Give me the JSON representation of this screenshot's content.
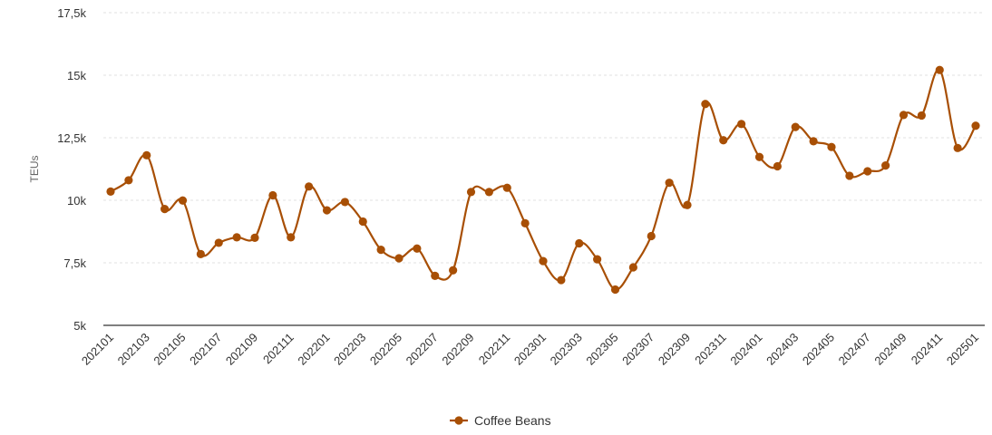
{
  "chart_data": {
    "type": "line",
    "ylabel": "TEUs",
    "ylim": [
      5000,
      17500
    ],
    "yticks": [
      5000,
      7500,
      10000,
      12500,
      15000,
      17500
    ],
    "ytick_labels": [
      "5k",
      "7,5k",
      "10k",
      "12,5k",
      "15k",
      "17,5k"
    ],
    "grid": "horizontal dashed",
    "legend_position": "bottom-center",
    "x": [
      "202101",
      "202102",
      "202103",
      "202104",
      "202105",
      "202106",
      "202107",
      "202108",
      "202109",
      "202110",
      "202111",
      "202112",
      "202201",
      "202202",
      "202203",
      "202204",
      "202205",
      "202206",
      "202207",
      "202208",
      "202209",
      "202210",
      "202211",
      "202212",
      "202301",
      "202302",
      "202303",
      "202304",
      "202305",
      "202306",
      "202307",
      "202308",
      "202309",
      "202310",
      "202311",
      "202312",
      "202401",
      "202402",
      "202403",
      "202404",
      "202405",
      "202406",
      "202407",
      "202408",
      "202409",
      "202410",
      "202411",
      "202412",
      "202501"
    ],
    "xtick_labels": [
      "202101",
      "202103",
      "202105",
      "202107",
      "202109",
      "202111",
      "202201",
      "202203",
      "202205",
      "202207",
      "202209",
      "202211",
      "202301",
      "202303",
      "202305",
      "202307",
      "202309",
      "202311",
      "202401",
      "202403",
      "202405",
      "202407",
      "202409",
      "202411",
      "202501"
    ],
    "series": [
      {
        "name": "Coffee Beans",
        "color": "#a84f05",
        "values": [
          10350,
          10800,
          11800,
          9650,
          9990,
          7850,
          8300,
          8520,
          8500,
          10200,
          8520,
          10550,
          9600,
          9930,
          9150,
          8020,
          7680,
          8070,
          6980,
          7200,
          10330,
          10330,
          10500,
          9080,
          7570,
          6810,
          8280,
          7640,
          6430,
          7320,
          8570,
          10700,
          9810,
          13850,
          12400,
          13050,
          11730,
          11360,
          12930,
          12360,
          12130,
          10980,
          11160,
          11390,
          13410,
          13390,
          15210,
          12090,
          12980
        ]
      }
    ]
  }
}
